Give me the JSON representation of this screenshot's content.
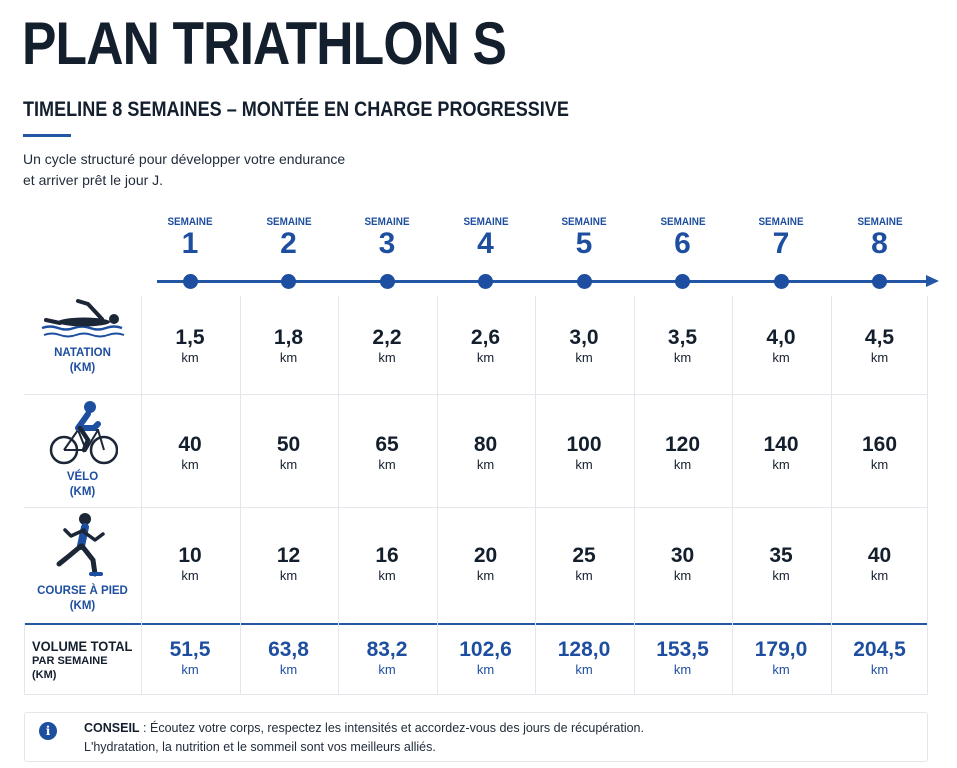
{
  "header": {
    "title": "PLAN TRIATHLON S",
    "subtitle": "TIMELINE 8 SEMAINES – MONTÉE EN CHARGE PROGRESSIVE",
    "intro_line1": "Un cycle structuré pour développer votre endurance",
    "intro_line2": "et arriver prêt le jour J."
  },
  "timeline": {
    "week_label": "SEMAINE",
    "weeks": [
      "1",
      "2",
      "3",
      "4",
      "5",
      "6",
      "7",
      "8"
    ],
    "accent_color": "#1e4e9f"
  },
  "unit": "km",
  "rows": [
    {
      "icon": "swimmer-icon",
      "label_line1": "NATATION",
      "label_line2": "(KM)",
      "values": [
        "1,5",
        "1,8",
        "2,2",
        "2,6",
        "3,0",
        "3,5",
        "4,0",
        "4,5"
      ]
    },
    {
      "icon": "cyclist-icon",
      "label_line1": "VÉLO",
      "label_line2": "(KM)",
      "values": [
        "40",
        "50",
        "65",
        "80",
        "100",
        "120",
        "140",
        "160"
      ]
    },
    {
      "icon": "runner-icon",
      "label_line1": "COURSE À PIED",
      "label_line2": "(KM)",
      "values": [
        "10",
        "12",
        "16",
        "20",
        "25",
        "30",
        "35",
        "40"
      ]
    }
  ],
  "total": {
    "label_line1": "VOLUME TOTAL",
    "label_line2": "PAR SEMAINE",
    "label_line3": "(KM)",
    "values": [
      "51,5",
      "63,8",
      "83,2",
      "102,6",
      "128,0",
      "153,5",
      "179,0",
      "204,5"
    ]
  },
  "tip": {
    "icon": "info-icon",
    "lead": "CONSEIL",
    "line1_rest": " : Écoutez votre corps, respectez les intensités et accordez-vous des jours de récupération.",
    "line2": "L'hydratation, la nutrition et le sommeil sont vos meilleurs alliés."
  }
}
